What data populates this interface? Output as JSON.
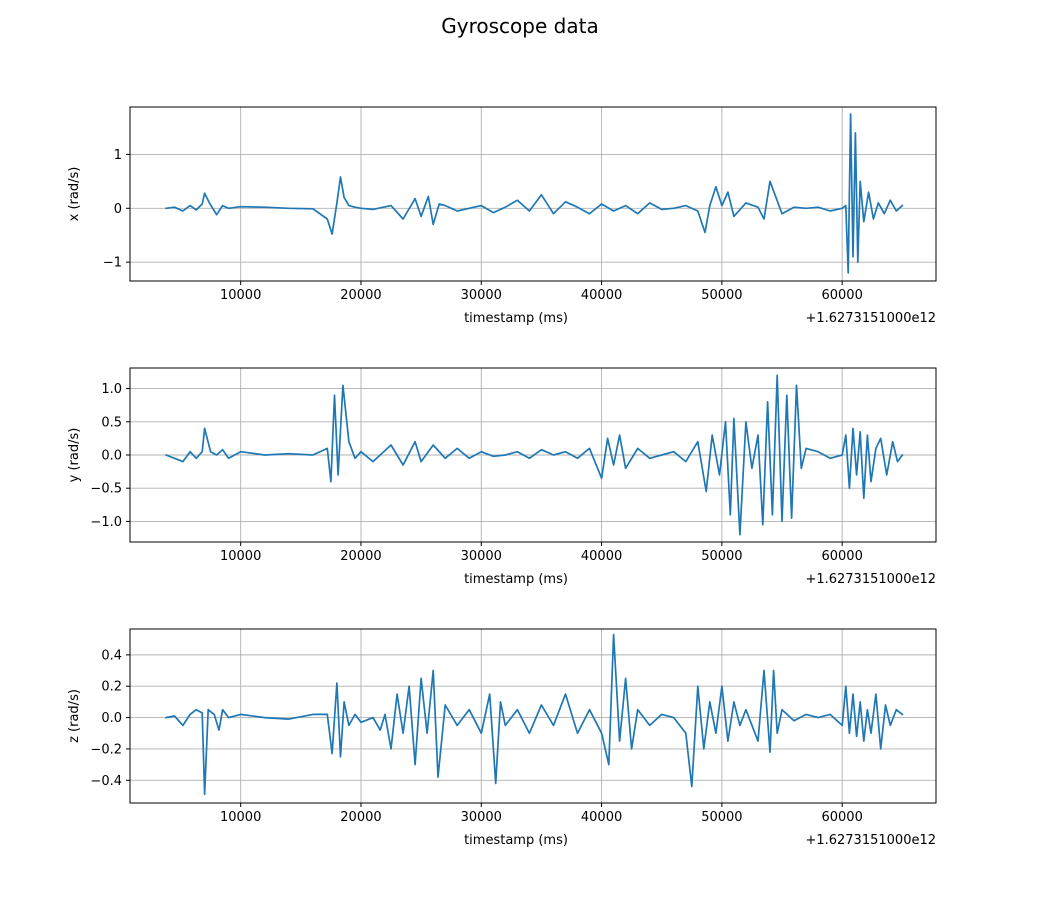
{
  "figure_title": "Gyroscope data",
  "chart_data": [
    {
      "type": "line",
      "xlabel": "timestamp (ms)",
      "ylabel": "x (rad/s)",
      "x_offset_label": "+1.6273151000e12",
      "xlim": [
        800,
        67800
      ],
      "ylim": [
        -1.35,
        1.88
      ],
      "xticks": [
        10000,
        20000,
        30000,
        40000,
        50000,
        60000
      ],
      "yticks": [
        -1,
        0,
        1
      ],
      "ytick_labels": [
        "−1",
        "0",
        "1"
      ],
      "grid": true,
      "color": "#1f77b4",
      "x": [
        3800,
        4500,
        5200,
        5800,
        6300,
        6800,
        7000,
        7400,
        8000,
        8500,
        9000,
        10000,
        12000,
        14000,
        16000,
        17200,
        17600,
        18000,
        18300,
        18600,
        19000,
        19500,
        20000,
        21000,
        22500,
        23500,
        24500,
        25000,
        25600,
        26000,
        26500,
        27000,
        28000,
        29000,
        30000,
        31000,
        32000,
        33000,
        34000,
        35000,
        36000,
        37000,
        38000,
        39000,
        40000,
        41000,
        42000,
        43000,
        44000,
        45000,
        46000,
        47000,
        48000,
        48600,
        49000,
        49500,
        50000,
        50500,
        51000,
        52000,
        53000,
        53500,
        54000,
        55000,
        56000,
        57000,
        58000,
        59000,
        60000,
        60300,
        60500,
        60700,
        60900,
        61100,
        61300,
        61500,
        61800,
        62200,
        62600,
        63000,
        63500,
        64000,
        64500,
        65000
      ],
      "y": [
        0,
        0.02,
        -0.05,
        0.05,
        -0.03,
        0.08,
        0.28,
        0.1,
        -0.12,
        0.05,
        0,
        0.03,
        0.02,
        0,
        -0.01,
        -0.2,
        -0.48,
        0.1,
        0.58,
        0.2,
        0.05,
        0.02,
        0,
        -0.02,
        0.05,
        -0.2,
        0.18,
        -0.15,
        0.22,
        -0.3,
        0.08,
        0.05,
        -0.05,
        0,
        0.05,
        -0.08,
        0.02,
        0.15,
        -0.05,
        0.25,
        -0.1,
        0.12,
        0.02,
        -0.1,
        0.08,
        -0.05,
        0.05,
        -0.1,
        0.1,
        -0.02,
        0,
        0.05,
        -0.05,
        -0.45,
        0.05,
        0.4,
        0.05,
        0.3,
        -0.15,
        0.1,
        0.02,
        -0.2,
        0.5,
        -0.1,
        0.02,
        0,
        0.02,
        -0.05,
        0,
        0.05,
        -1.2,
        1.75,
        -0.9,
        1.4,
        -1.0,
        0.5,
        -0.25,
        0.3,
        -0.2,
        0.1,
        -0.1,
        0.15,
        -0.05,
        0.05
      ]
    },
    {
      "type": "line",
      "xlabel": "timestamp (ms)",
      "ylabel": "y (rad/s)",
      "x_offset_label": "+1.6273151000e12",
      "xlim": [
        800,
        67800
      ],
      "ylim": [
        -1.31,
        1.31
      ],
      "xticks": [
        10000,
        20000,
        30000,
        40000,
        50000,
        60000
      ],
      "yticks": [
        -1.0,
        -0.5,
        0.0,
        0.5,
        1.0
      ],
      "ytick_labels": [
        "−1.0",
        "−0.5",
        "0.0",
        "0.5",
        "1.0"
      ],
      "grid": true,
      "color": "#1f77b4",
      "x": [
        3800,
        4500,
        5200,
        5800,
        6300,
        6800,
        7000,
        7500,
        8000,
        8500,
        9000,
        10000,
        12000,
        14000,
        16000,
        17200,
        17500,
        17800,
        18100,
        18500,
        19000,
        19500,
        20000,
        21000,
        22500,
        23500,
        24500,
        25000,
        26000,
        27000,
        28000,
        29000,
        30000,
        31000,
        32000,
        33000,
        34000,
        35000,
        36000,
        37000,
        38000,
        39000,
        40000,
        40500,
        41000,
        41500,
        42000,
        43000,
        44000,
        45000,
        46000,
        47000,
        48000,
        48700,
        49200,
        49800,
        50300,
        50700,
        51000,
        51500,
        52000,
        52500,
        53000,
        53400,
        53800,
        54200,
        54600,
        55000,
        55400,
        55800,
        56200,
        56600,
        57000,
        58000,
        59000,
        60000,
        60300,
        60600,
        60900,
        61200,
        61500,
        61800,
        62100,
        62400,
        62800,
        63200,
        63700,
        64200,
        64600,
        65000
      ],
      "y": [
        0,
        -0.05,
        -0.1,
        0.05,
        -0.05,
        0.05,
        0.4,
        0.05,
        0,
        0.08,
        -0.05,
        0.05,
        0,
        0.02,
        0,
        0.1,
        -0.4,
        0.9,
        -0.3,
        1.05,
        0.2,
        -0.05,
        0.05,
        -0.1,
        0.15,
        -0.15,
        0.2,
        -0.1,
        0.15,
        -0.05,
        0.1,
        -0.05,
        0.05,
        -0.02,
        0,
        0.05,
        -0.05,
        0.08,
        0,
        0.05,
        -0.05,
        0.1,
        -0.35,
        0.25,
        -0.15,
        0.3,
        -0.2,
        0.1,
        -0.05,
        0,
        0.05,
        -0.1,
        0.2,
        -0.55,
        0.3,
        -0.3,
        0.5,
        -0.9,
        0.55,
        -1.2,
        0.5,
        -0.2,
        0.3,
        -1.05,
        0.8,
        -0.9,
        1.2,
        -1.0,
        0.9,
        -0.95,
        1.05,
        -0.2,
        0.1,
        0.05,
        -0.05,
        0,
        0.3,
        -0.5,
        0.4,
        -0.3,
        0.35,
        -0.65,
        0.3,
        -0.4,
        0.1,
        0.25,
        -0.3,
        0.2,
        -0.1,
        0
      ]
    },
    {
      "type": "line",
      "xlabel": "timestamp (ms)",
      "ylabel": "z (rad/s)",
      "x_offset_label": "+1.6273151000e12",
      "xlim": [
        800,
        67800
      ],
      "ylim": [
        -0.545,
        0.565
      ],
      "xticks": [
        10000,
        20000,
        30000,
        40000,
        50000,
        60000
      ],
      "yticks": [
        -0.4,
        -0.2,
        0.0,
        0.2,
        0.4
      ],
      "ytick_labels": [
        "−0.4",
        "−0.2",
        "0.0",
        "0.2",
        "0.4"
      ],
      "grid": true,
      "color": "#1f77b4",
      "x": [
        3800,
        4500,
        5200,
        5800,
        6300,
        6800,
        7000,
        7300,
        7800,
        8200,
        8500,
        9000,
        10000,
        12000,
        14000,
        16000,
        17200,
        17600,
        18000,
        18300,
        18600,
        19000,
        19500,
        20000,
        21000,
        21600,
        22000,
        22500,
        23000,
        23500,
        24000,
        24500,
        25000,
        25500,
        26000,
        26400,
        27000,
        28000,
        29000,
        30000,
        30700,
        31200,
        31600,
        32000,
        33000,
        34000,
        35000,
        36000,
        37000,
        38000,
        39000,
        40000,
        40600,
        41000,
        41500,
        42000,
        42500,
        43000,
        44000,
        45000,
        46000,
        47000,
        47500,
        48000,
        48500,
        49000,
        49500,
        50000,
        50500,
        51000,
        51500,
        52000,
        53000,
        53500,
        54000,
        54300,
        54600,
        55000,
        56000,
        57000,
        58000,
        59000,
        60000,
        60300,
        60600,
        60900,
        61200,
        61500,
        61800,
        62100,
        62400,
        62800,
        63200,
        63600,
        64000,
        64500,
        65000
      ],
      "y": [
        0,
        0.01,
        -0.05,
        0.02,
        0.05,
        0.03,
        -0.49,
        0.05,
        0.02,
        -0.08,
        0.05,
        0,
        0.02,
        0,
        -0.01,
        0.02,
        0.02,
        -0.23,
        0.22,
        -0.25,
        0.1,
        -0.05,
        0.02,
        -0.03,
        0,
        -0.08,
        0.02,
        -0.2,
        0.15,
        -0.1,
        0.2,
        -0.3,
        0.25,
        -0.1,
        0.3,
        -0.38,
        0.08,
        -0.05,
        0.05,
        -0.1,
        0.15,
        -0.42,
        0.1,
        -0.05,
        0.05,
        -0.1,
        0.08,
        -0.05,
        0.15,
        -0.1,
        0.05,
        -0.1,
        -0.3,
        0.53,
        -0.15,
        0.25,
        -0.2,
        0.05,
        -0.05,
        0.02,
        0,
        -0.1,
        -0.44,
        0.2,
        -0.2,
        0.1,
        -0.1,
        0.2,
        -0.15,
        0.1,
        -0.05,
        0.05,
        -0.15,
        0.3,
        -0.22,
        0.3,
        -0.1,
        0.05,
        -0.02,
        0.02,
        0,
        0.02,
        -0.05,
        0.2,
        -0.1,
        0.15,
        -0.12,
        0.1,
        -0.15,
        0.05,
        -0.1,
        0.15,
        -0.2,
        0.08,
        -0.05,
        0.05,
        0.02
      ]
    }
  ]
}
